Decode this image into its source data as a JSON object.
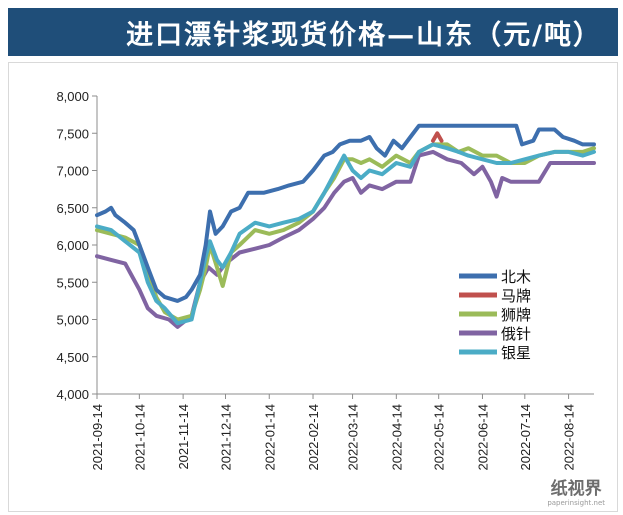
{
  "title": "进口漂针浆现货价格—山东（元/吨）",
  "watermark": {
    "name": "纸视界",
    "url": "paperinsight.net"
  },
  "chart_data": {
    "type": "line",
    "title": "进口漂针浆现货价格—山东（元/吨）",
    "xlabel": "",
    "ylabel": "",
    "x_start": "2021-09-14",
    "x_end": "2022-09-01",
    "ylim": [
      4000,
      8000
    ],
    "yticks": [
      4000,
      4500,
      5000,
      5500,
      6000,
      6500,
      7000,
      7500,
      8000
    ],
    "ytick_labels": [
      "4,000",
      "4,500",
      "5,000",
      "5,500",
      "6,000",
      "6,500",
      "7,000",
      "7,500",
      "8,000"
    ],
    "xticks": [
      "2021-09-14",
      "2021-10-14",
      "2021-11-14",
      "2021-12-14",
      "2022-01-14",
      "2022-02-14",
      "2022-03-14",
      "2022-04-14",
      "2022-05-14",
      "2022-06-14",
      "2022-07-14",
      "2022-08-14"
    ],
    "grid": false,
    "legend_position": "right",
    "series": [
      {
        "name": "北木",
        "color": "#3d6fae",
        "points": [
          [
            "2021-09-14",
            6400
          ],
          [
            "2021-09-20",
            6450
          ],
          [
            "2021-09-24",
            6500
          ],
          [
            "2021-09-27",
            6400
          ],
          [
            "2021-10-04",
            6300
          ],
          [
            "2021-10-10",
            6200
          ],
          [
            "2021-10-14",
            6000
          ],
          [
            "2021-10-20",
            5700
          ],
          [
            "2021-10-26",
            5400
          ],
          [
            "2021-11-01",
            5300
          ],
          [
            "2021-11-10",
            5250
          ],
          [
            "2021-11-16",
            5300
          ],
          [
            "2021-11-20",
            5400
          ],
          [
            "2021-11-26",
            5600
          ],
          [
            "2021-11-30",
            6000
          ],
          [
            "2021-12-03",
            6450
          ],
          [
            "2021-12-07",
            6150
          ],
          [
            "2021-12-12",
            6250
          ],
          [
            "2021-12-18",
            6450
          ],
          [
            "2021-12-24",
            6500
          ],
          [
            "2021-12-30",
            6700
          ],
          [
            "2022-01-10",
            6700
          ],
          [
            "2022-01-20",
            6750
          ],
          [
            "2022-01-28",
            6800
          ],
          [
            "2022-02-07",
            6850
          ],
          [
            "2022-02-14",
            7000
          ],
          [
            "2022-02-22",
            7200
          ],
          [
            "2022-02-28",
            7250
          ],
          [
            "2022-03-05",
            7350
          ],
          [
            "2022-03-12",
            7400
          ],
          [
            "2022-03-20",
            7400
          ],
          [
            "2022-03-26",
            7450
          ],
          [
            "2022-03-31",
            7300
          ],
          [
            "2022-04-06",
            7200
          ],
          [
            "2022-04-12",
            7400
          ],
          [
            "2022-04-18",
            7300
          ],
          [
            "2022-04-24",
            7450
          ],
          [
            "2022-04-30",
            7600
          ],
          [
            "2022-05-10",
            7600
          ],
          [
            "2022-05-20",
            7600
          ],
          [
            "2022-06-01",
            7600
          ],
          [
            "2022-06-14",
            7600
          ],
          [
            "2022-06-28",
            7600
          ],
          [
            "2022-07-08",
            7600
          ],
          [
            "2022-07-12",
            7350
          ],
          [
            "2022-07-20",
            7400
          ],
          [
            "2022-07-24",
            7550
          ],
          [
            "2022-08-04",
            7550
          ],
          [
            "2022-08-10",
            7450
          ],
          [
            "2022-08-18",
            7400
          ],
          [
            "2022-08-24",
            7350
          ],
          [
            "2022-09-01",
            7350
          ]
        ]
      },
      {
        "name": "马牌",
        "color": "#c0504d",
        "points": [
          [
            "2022-05-10",
            7400
          ],
          [
            "2022-05-13",
            7500
          ],
          [
            "2022-05-16",
            7400
          ]
        ]
      },
      {
        "name": "狮牌",
        "color": "#9bbb59",
        "points": [
          [
            "2021-09-14",
            6200
          ],
          [
            "2021-09-24",
            6150
          ],
          [
            "2021-10-04",
            6100
          ],
          [
            "2021-10-14",
            6000
          ],
          [
            "2021-10-20",
            5650
          ],
          [
            "2021-10-26",
            5300
          ],
          [
            "2021-11-01",
            5100
          ],
          [
            "2021-11-10",
            5000
          ],
          [
            "2021-11-20",
            5050
          ],
          [
            "2021-11-26",
            5400
          ],
          [
            "2021-11-30",
            5700
          ],
          [
            "2021-12-03",
            6000
          ],
          [
            "2021-12-08",
            5700
          ],
          [
            "2021-12-12",
            5450
          ],
          [
            "2021-12-18",
            5900
          ],
          [
            "2021-12-24",
            6000
          ],
          [
            "2022-01-04",
            6200
          ],
          [
            "2022-01-14",
            6150
          ],
          [
            "2022-01-24",
            6200
          ],
          [
            "2022-02-04",
            6300
          ],
          [
            "2022-02-14",
            6450
          ],
          [
            "2022-02-22",
            6700
          ],
          [
            "2022-03-01",
            6900
          ],
          [
            "2022-03-08",
            7150
          ],
          [
            "2022-03-14",
            7150
          ],
          [
            "2022-03-20",
            7100
          ],
          [
            "2022-03-26",
            7150
          ],
          [
            "2022-04-04",
            7050
          ],
          [
            "2022-04-14",
            7200
          ],
          [
            "2022-04-24",
            7100
          ],
          [
            "2022-04-30",
            7250
          ],
          [
            "2022-05-10",
            7350
          ],
          [
            "2022-05-20",
            7350
          ],
          [
            "2022-05-28",
            7250
          ],
          [
            "2022-06-04",
            7300
          ],
          [
            "2022-06-14",
            7200
          ],
          [
            "2022-06-24",
            7200
          ],
          [
            "2022-07-04",
            7100
          ],
          [
            "2022-07-14",
            7100
          ],
          [
            "2022-07-24",
            7200
          ],
          [
            "2022-08-04",
            7250
          ],
          [
            "2022-08-14",
            7250
          ],
          [
            "2022-08-24",
            7250
          ],
          [
            "2022-09-01",
            7300
          ]
        ]
      },
      {
        "name": "俄针",
        "color": "#8064a2",
        "points": [
          [
            "2021-09-14",
            5850
          ],
          [
            "2021-09-24",
            5800
          ],
          [
            "2021-10-04",
            5750
          ],
          [
            "2021-10-14",
            5400
          ],
          [
            "2021-10-20",
            5150
          ],
          [
            "2021-10-26",
            5050
          ],
          [
            "2021-11-04",
            5000
          ],
          [
            "2021-11-10",
            4900
          ],
          [
            "2021-11-20",
            5050
          ],
          [
            "2021-11-26",
            5500
          ],
          [
            "2021-12-02",
            5700
          ],
          [
            "2021-12-08",
            5600
          ],
          [
            "2021-12-14",
            5750
          ],
          [
            "2021-12-24",
            5900
          ],
          [
            "2022-01-04",
            5950
          ],
          [
            "2022-01-14",
            6000
          ],
          [
            "2022-01-24",
            6100
          ],
          [
            "2022-02-04",
            6200
          ],
          [
            "2022-02-14",
            6350
          ],
          [
            "2022-02-22",
            6500
          ],
          [
            "2022-03-01",
            6700
          ],
          [
            "2022-03-08",
            6850
          ],
          [
            "2022-03-14",
            6900
          ],
          [
            "2022-03-20",
            6700
          ],
          [
            "2022-03-26",
            6800
          ],
          [
            "2022-04-04",
            6750
          ],
          [
            "2022-04-14",
            6850
          ],
          [
            "2022-04-24",
            6850
          ],
          [
            "2022-04-30",
            7200
          ],
          [
            "2022-05-10",
            7250
          ],
          [
            "2022-05-20",
            7150
          ],
          [
            "2022-05-30",
            7100
          ],
          [
            "2022-06-08",
            6950
          ],
          [
            "2022-06-14",
            7050
          ],
          [
            "2022-06-20",
            6850
          ],
          [
            "2022-06-24",
            6650
          ],
          [
            "2022-06-28",
            6900
          ],
          [
            "2022-07-04",
            6850
          ],
          [
            "2022-07-14",
            6850
          ],
          [
            "2022-07-24",
            6850
          ],
          [
            "2022-08-01",
            7100
          ],
          [
            "2022-08-10",
            7100
          ],
          [
            "2022-08-20",
            7100
          ],
          [
            "2022-09-01",
            7100
          ]
        ]
      },
      {
        "name": "银星",
        "color": "#4bacc6",
        "points": [
          [
            "2021-09-14",
            6250
          ],
          [
            "2021-09-24",
            6200
          ],
          [
            "2021-10-04",
            6050
          ],
          [
            "2021-10-14",
            5900
          ],
          [
            "2021-10-20",
            5500
          ],
          [
            "2021-10-26",
            5250
          ],
          [
            "2021-11-01",
            5150
          ],
          [
            "2021-11-10",
            4950
          ],
          [
            "2021-11-20",
            5000
          ],
          [
            "2021-11-26",
            5500
          ],
          [
            "2021-11-30",
            5850
          ],
          [
            "2021-12-03",
            6050
          ],
          [
            "2021-12-08",
            5800
          ],
          [
            "2021-12-12",
            5700
          ],
          [
            "2021-12-18",
            5900
          ],
          [
            "2021-12-24",
            6150
          ],
          [
            "2022-01-04",
            6300
          ],
          [
            "2022-01-14",
            6250
          ],
          [
            "2022-01-24",
            6300
          ],
          [
            "2022-02-04",
            6350
          ],
          [
            "2022-02-14",
            6450
          ],
          [
            "2022-02-22",
            6700
          ],
          [
            "2022-03-01",
            6950
          ],
          [
            "2022-03-08",
            7200
          ],
          [
            "2022-03-14",
            7000
          ],
          [
            "2022-03-20",
            6900
          ],
          [
            "2022-03-26",
            7000
          ],
          [
            "2022-04-04",
            6950
          ],
          [
            "2022-04-14",
            7100
          ],
          [
            "2022-04-24",
            7050
          ],
          [
            "2022-04-30",
            7250
          ],
          [
            "2022-05-10",
            7350
          ],
          [
            "2022-05-20",
            7300
          ],
          [
            "2022-05-28",
            7250
          ],
          [
            "2022-06-04",
            7200
          ],
          [
            "2022-06-14",
            7150
          ],
          [
            "2022-06-24",
            7100
          ],
          [
            "2022-07-04",
            7100
          ],
          [
            "2022-07-14",
            7150
          ],
          [
            "2022-07-24",
            7200
          ],
          [
            "2022-08-04",
            7250
          ],
          [
            "2022-08-14",
            7250
          ],
          [
            "2022-08-24",
            7200
          ],
          [
            "2022-09-01",
            7250
          ]
        ]
      }
    ]
  }
}
